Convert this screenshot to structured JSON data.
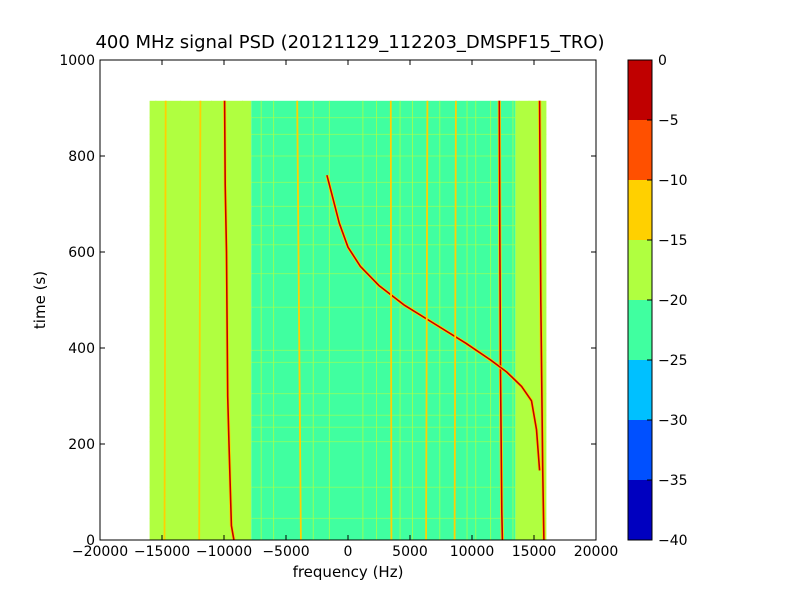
{
  "chart_data": {
    "type": "heatmap",
    "title": "400 MHz signal PSD (20121129_112203_DMSPF15_TRO)",
    "xlabel": "frequency (Hz)",
    "ylabel": "time (s)",
    "xlim": [
      -20000,
      20000
    ],
    "ylim": [
      0,
      1000
    ],
    "xticks": [
      -20000,
      -15000,
      -10000,
      -5000,
      0,
      5000,
      10000,
      15000,
      20000
    ],
    "yticks": [
      0,
      200,
      400,
      600,
      800,
      1000
    ],
    "data_extent": {
      "x": [
        -16000,
        16000
      ],
      "t": [
        0,
        915
      ]
    },
    "colorbar": {
      "levels": [
        -40,
        -35,
        -30,
        -25,
        -20,
        -15,
        -10,
        -5,
        0
      ],
      "colors": [
        "#0000c0",
        "#0050ff",
        "#00c0ff",
        "#40ffa0",
        "#b0ff40",
        "#ffd000",
        "#ff5000",
        "#c00000"
      ],
      "tick_labels": [
        "0",
        "−5",
        "−10",
        "−15",
        "−20",
        "−25",
        "−30",
        "−35",
        "−40"
      ]
    },
    "band_levels": [
      {
        "x": [
          -16000,
          -7800
        ],
        "level": -17.5
      },
      {
        "x": [
          -7800,
          13500
        ],
        "level": -22.5
      },
      {
        "x": [
          13500,
          16000
        ],
        "level": -17.5
      }
    ],
    "carriers": [
      {
        "level": -2.5,
        "points": [
          [
            -9200,
            0
          ],
          [
            -9400,
            30
          ],
          [
            -9600,
            200
          ],
          [
            -9700,
            300
          ],
          [
            -9800,
            600
          ],
          [
            -9900,
            740
          ],
          [
            -9950,
            915
          ]
        ]
      },
      {
        "level": -2.5,
        "points": [
          [
            12450,
            0
          ],
          [
            12400,
            60
          ],
          [
            12300,
            350
          ],
          [
            12250,
            600
          ],
          [
            12200,
            915
          ]
        ]
      },
      {
        "level": -2.5,
        "points": [
          [
            15800,
            0
          ],
          [
            15700,
            150
          ],
          [
            15550,
            500
          ],
          [
            15450,
            915
          ]
        ]
      },
      {
        "level": -2.5,
        "points": [
          [
            15450,
            145
          ],
          [
            15200,
            230
          ],
          [
            14800,
            290
          ],
          [
            14000,
            320
          ],
          [
            12800,
            350
          ],
          [
            11500,
            375
          ],
          [
            9500,
            410
          ],
          [
            7000,
            450
          ],
          [
            4500,
            490
          ],
          [
            2500,
            530
          ],
          [
            1000,
            570
          ],
          [
            0,
            610
          ],
          [
            -700,
            660
          ],
          [
            -1300,
            720
          ],
          [
            -1700,
            760
          ]
        ]
      },
      {
        "level": -12.5,
        "points": [
          [
            -14800,
            0
          ],
          [
            -14700,
            915
          ]
        ]
      },
      {
        "level": -12.5,
        "points": [
          [
            -12000,
            0
          ],
          [
            -11900,
            915
          ]
        ]
      },
      {
        "level": -12.5,
        "points": [
          [
            3500,
            0
          ],
          [
            3450,
            915
          ]
        ]
      },
      {
        "level": -12.5,
        "points": [
          [
            6300,
            0
          ],
          [
            6400,
            915
          ]
        ]
      },
      {
        "level": -12.5,
        "points": [
          [
            8600,
            0
          ],
          [
            8700,
            915
          ]
        ]
      },
      {
        "level": -12.5,
        "points": [
          [
            -3800,
            0
          ],
          [
            -4100,
            915
          ]
        ]
      }
    ],
    "weak_lines_x": [
      -15500,
      -13500,
      -11000,
      -8500,
      -7000,
      -6000,
      -2800,
      -1500,
      1200,
      2300,
      4200,
      5200,
      7400,
      9600,
      10300,
      11500,
      13300,
      13800,
      14600
    ],
    "time_artifacts_t": [
      45,
      110,
      205,
      235,
      260,
      305,
      370,
      395,
      485,
      555,
      615,
      655,
      695,
      745,
      800,
      845,
      880
    ]
  }
}
